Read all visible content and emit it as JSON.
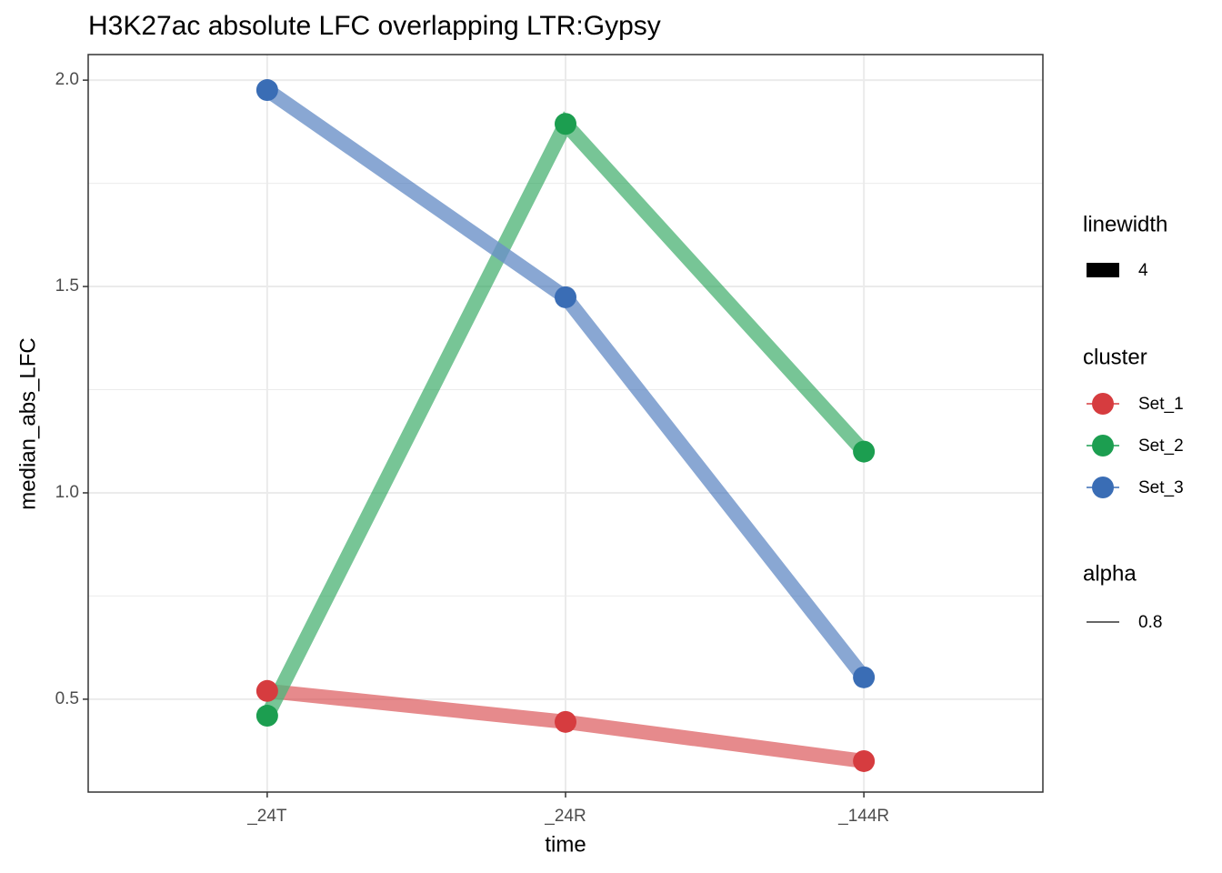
{
  "chart_data": {
    "type": "line",
    "title": "H3K27ac absolute LFC overlapping LTR:Gypsy",
    "x_label": "time",
    "y_label": "median_abs_LFC",
    "categories": [
      "_24T",
      "_24R",
      "_144R"
    ],
    "series": [
      {
        "name": "Set_1",
        "color": "#d63c3f",
        "values": [
          0.52,
          0.445,
          0.35
        ]
      },
      {
        "name": "Set_2",
        "color": "#1c9e50",
        "values": [
          0.46,
          1.894,
          1.1
        ]
      },
      {
        "name": "Set_3",
        "color": "#3a6db5",
        "values": [
          1.976,
          1.474,
          0.553
        ]
      }
    ],
    "ylim": [
      0.275,
      2.062
    ],
    "yticks": [
      {
        "value": 0.5,
        "label": "0.5"
      },
      {
        "value": 1,
        "label": "1.0"
      },
      {
        "value": 1.5,
        "label": "1.5"
      },
      {
        "value": 2,
        "label": "2.0"
      }
    ],
    "yminorticks": [
      0.75,
      1.25,
      1.75
    ],
    "grid": true,
    "linewidth_legend": {
      "title": "linewidth",
      "value": 4
    },
    "cluster_legend_title": "cluster",
    "alpha_legend": {
      "title": "alpha",
      "value": 0.8
    }
  }
}
